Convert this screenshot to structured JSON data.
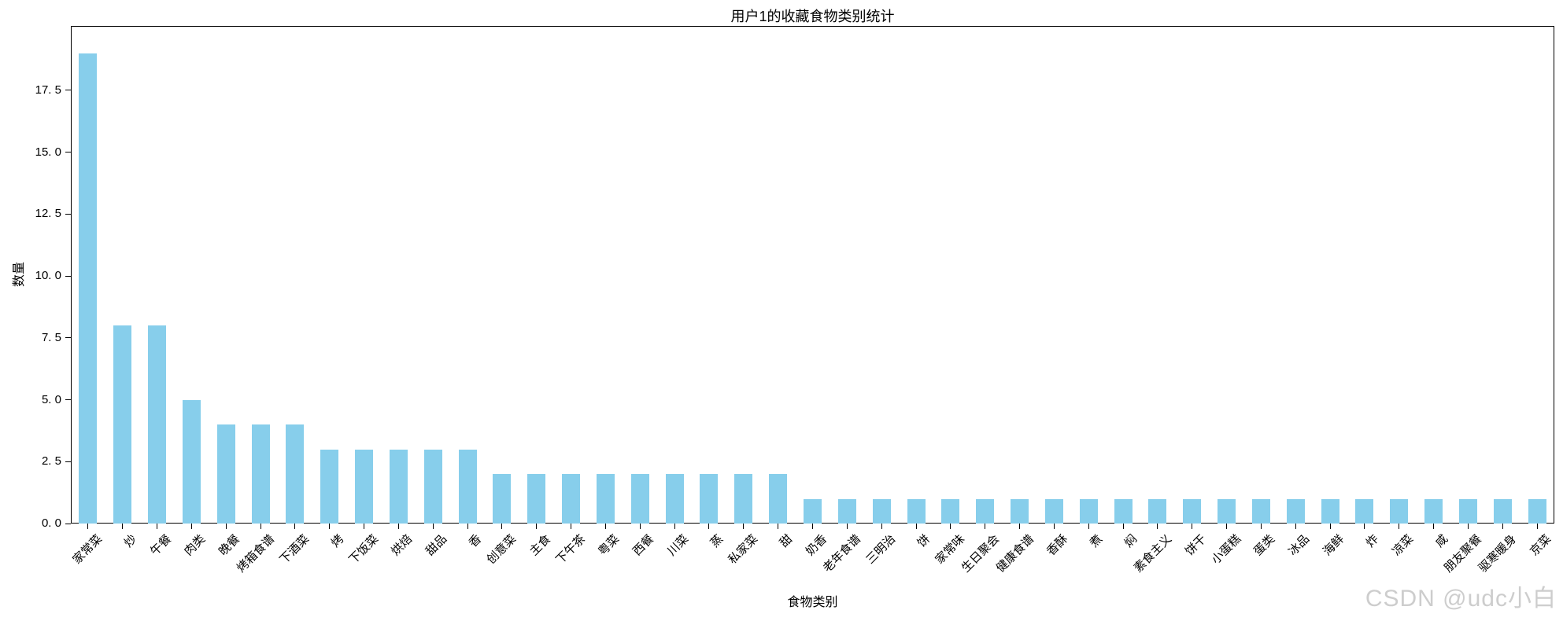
{
  "chart_data": {
    "type": "bar",
    "title": "用户1的收藏食物类别统计",
    "xlabel": "食物类别",
    "ylabel": "数量",
    "categories": [
      "家常菜",
      "炒",
      "午餐",
      "肉类",
      "晚餐",
      "烤箱食谱",
      "下酒菜",
      "烤",
      "下饭菜",
      "烘焙",
      "甜品",
      "香",
      "创意菜",
      "主食",
      "下午茶",
      "粤菜",
      "西餐",
      "川菜",
      "蒸",
      "私家菜",
      "甜",
      "奶香",
      "老年食谱",
      "三明治",
      "饼",
      "家常味",
      "生日聚会",
      "健康食谱",
      "香酥",
      "煮",
      "焖",
      "素食主义",
      "饼干",
      "小蛋糕",
      "蛋类",
      "冰品",
      "海鲜",
      "炸",
      "凉菜",
      "咸",
      "朋友聚餐",
      "驱寒暖身",
      "京菜"
    ],
    "values": [
      19,
      8,
      8,
      5,
      4,
      4,
      4,
      3,
      3,
      3,
      3,
      3,
      2,
      2,
      2,
      2,
      2,
      2,
      2,
      2,
      2,
      1,
      1,
      1,
      1,
      1,
      1,
      1,
      1,
      1,
      1,
      1,
      1,
      1,
      1,
      1,
      1,
      1,
      1,
      1,
      1,
      1,
      1
    ],
    "yticks": [
      0,
      2.5,
      5,
      7.5,
      10,
      12.5,
      15,
      17.5
    ],
    "ytick_labels": [
      "0. 0",
      "2. 5",
      "5. 0",
      "7. 5",
      "10. 0",
      "12. 5",
      "15. 0",
      "17. 5"
    ],
    "ylim": [
      0,
      20.1
    ],
    "x_tick_rotation": 45,
    "grid": false,
    "legend": null,
    "bar_color": "#87CEEB",
    "axis_color": "#000000"
  },
  "watermark": {
    "text": "CSDN @udc小白",
    "color": "#cdcdcd"
  }
}
